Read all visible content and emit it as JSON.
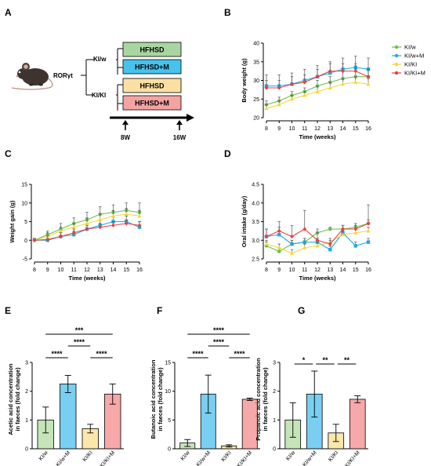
{
  "panels": {
    "a": "A",
    "b": "B",
    "c": "C",
    "d": "D",
    "e": "E",
    "f": "F",
    "g": "G"
  },
  "diagram": {
    "mouse_label": "RORγt",
    "branch_kiw": "KI/w",
    "branch_kiki": "KI/KI",
    "boxes": [
      {
        "label": "HFHSD",
        "color": "#a9d6a0"
      },
      {
        "label": "HFHSD+M",
        "color": "#45c3ec"
      },
      {
        "label": "HFHSD",
        "color": "#fbe0a2"
      },
      {
        "label": "HFHSD+M",
        "color": "#f4a3a3"
      }
    ],
    "time_start": "8W",
    "time_end": "16W"
  },
  "legend": [
    {
      "name": "KI/w",
      "color": "#6abf4b"
    },
    {
      "name": "KI/w+M",
      "color": "#1ea9e0"
    },
    {
      "name": "KI/KI",
      "color": "#f5d53a"
    },
    {
      "name": "KI/KI+M",
      "color": "#e8403f"
    }
  ],
  "chart_data": [
    {
      "id": "B",
      "type": "line",
      "xlabel": "Time (weeks)",
      "ylabel": "Body weight (g)",
      "x": [
        8,
        9,
        10,
        11,
        12,
        13,
        14,
        15,
        16
      ],
      "xlim": [
        8,
        16
      ],
      "ylim": [
        20,
        40
      ],
      "xticks": [
        "8",
        "9",
        "10",
        "11",
        "12",
        "13",
        "14",
        "15",
        "16"
      ],
      "yticks": [
        "20",
        "25",
        "30",
        "35",
        "40"
      ],
      "series": [
        {
          "name": "KI/w",
          "color": "#6abf4b",
          "values": [
            23.5,
            24.5,
            26,
            27,
            28.5,
            29.5,
            30.5,
            31,
            31
          ],
          "err": [
            1,
            1,
            1,
            1,
            1.5,
            1.5,
            2,
            2,
            2
          ]
        },
        {
          "name": "KI/w+M",
          "color": "#1ea9e0",
          "values": [
            28.5,
            28.5,
            29,
            30,
            31,
            32,
            33,
            33.5,
            33
          ],
          "err": [
            3,
            3,
            3,
            3,
            3,
            3,
            3,
            3,
            3
          ]
        },
        {
          "name": "KI/KI",
          "color": "#f5d53a",
          "values": [
            22.5,
            23.5,
            25,
            26,
            27,
            28,
            29,
            29.5,
            29
          ],
          "err": [
            1,
            1,
            1,
            1,
            1.5,
            1.5,
            1.5,
            1.5,
            1.5
          ]
        },
        {
          "name": "KI/KI+M",
          "color": "#e8403f",
          "values": [
            28,
            28,
            29,
            29.5,
            31,
            32.5,
            32.5,
            32.5,
            31
          ],
          "err": [
            2,
            2,
            2,
            2,
            2,
            2,
            2,
            2,
            2
          ]
        }
      ]
    },
    {
      "id": "C",
      "type": "line",
      "xlabel": "Time (weeks)",
      "ylabel": "Weight gain (g)",
      "x": [
        8,
        9,
        10,
        11,
        12,
        13,
        14,
        15,
        16
      ],
      "xlim": [
        8,
        16
      ],
      "ylim": [
        -5,
        15
      ],
      "xticks": [
        "8",
        "9",
        "10",
        "11",
        "12",
        "13",
        "14",
        "15",
        "16"
      ],
      "yticks": [
        "-5",
        "0",
        "5",
        "10",
        "15"
      ],
      "series": [
        {
          "name": "KI/w",
          "color": "#6abf4b",
          "values": [
            0,
            1.5,
            3,
            4.5,
            5.5,
            7,
            7.5,
            8,
            7.5
          ],
          "err": [
            0.5,
            1,
            1.5,
            1.5,
            2,
            2,
            2,
            2,
            2.5
          ]
        },
        {
          "name": "KI/w+M",
          "color": "#1ea9e0",
          "values": [
            0,
            0,
            1,
            1.5,
            3,
            4,
            5,
            5,
            3.5
          ],
          "err": [
            0.5,
            1,
            1,
            1,
            1.5,
            1.5,
            1.5,
            1.5,
            1.5
          ]
        },
        {
          "name": "KI/KI",
          "color": "#f5d53a",
          "values": [
            0,
            1,
            2.5,
            3.5,
            4.5,
            5.5,
            6.5,
            7,
            6.5
          ],
          "err": [
            0.5,
            1,
            1,
            1,
            1.5,
            1.5,
            1.5,
            1.5,
            1.5
          ]
        },
        {
          "name": "KI/KI+M",
          "color": "#e8403f",
          "values": [
            0,
            0.2,
            1,
            2,
            3,
            3.5,
            4,
            4.5,
            4
          ],
          "err": [
            0.5,
            1,
            1,
            1,
            1,
            1,
            1,
            1,
            1
          ]
        }
      ]
    },
    {
      "id": "D",
      "type": "line",
      "xlabel": "Time (weeks)",
      "ylabel": "Oral intake (g/day)",
      "x": [
        8,
        9,
        10,
        11,
        12,
        13,
        14,
        15,
        16
      ],
      "xlim": [
        8,
        16
      ],
      "ylim": [
        2.5,
        4.5
      ],
      "xticks": [
        "8",
        "9",
        "10",
        "11",
        "12",
        "13",
        "14",
        "15",
        "16"
      ],
      "yticks": [
        "2.5",
        "3.0",
        "3.5",
        "4.0",
        "4.5"
      ],
      "series": [
        {
          "name": "KI/w",
          "color": "#6abf4b",
          "values": [
            2.85,
            2.7,
            2.9,
            2.95,
            3.2,
            3.3,
            3.3,
            3.35,
            3.45
          ],
          "err": [
            0.1,
            0.1,
            0.1,
            0.1,
            0.1,
            0.05,
            0.1,
            0.1,
            0.1
          ]
        },
        {
          "name": "KI/w+M",
          "color": "#1ea9e0",
          "values": [
            3.1,
            3.15,
            2.9,
            2.95,
            2.95,
            2.75,
            3.2,
            2.85,
            2.95
          ],
          "err": [
            0.2,
            0.2,
            0.1,
            0.1,
            0.1,
            0.1,
            0.1,
            0.1,
            0.1
          ]
        },
        {
          "name": "KI/KI",
          "color": "#f5d53a",
          "values": [
            2.9,
            2.8,
            2.65,
            2.8,
            2.85,
            2.95,
            3.15,
            3.2,
            3.25
          ],
          "err": [
            0.1,
            0.1,
            0.1,
            0.1,
            0.1,
            0.1,
            0.1,
            0.1,
            0.1
          ]
        },
        {
          "name": "KI/KI+M",
          "color": "#e8403f",
          "values": [
            3.1,
            3.25,
            3.1,
            3.3,
            3.0,
            2.9,
            3.3,
            3.3,
            3.45
          ],
          "err": [
            0.2,
            0.25,
            0.3,
            0.5,
            0.2,
            0.1,
            0.1,
            0.1,
            0.5
          ]
        }
      ]
    },
    {
      "id": "E",
      "type": "bar",
      "ylabel": "Acetic acid concentration in faeces (fold change)",
      "categories": [
        "KI/w",
        "KI/w+M",
        "KI/KI",
        "KI/KI+M"
      ],
      "values": [
        1.0,
        2.25,
        0.7,
        1.9
      ],
      "err": [
        0.45,
        0.3,
        0.15,
        0.35
      ],
      "colors": [
        "#c5e5b8",
        "#79cff1",
        "#fbe7aa",
        "#f7a8a8"
      ],
      "ylim": [
        0,
        3
      ],
      "yticks": [
        "0",
        "1",
        "2",
        "3"
      ],
      "sig": [
        {
          "from": 0,
          "to": 1,
          "label": "****",
          "level": 0
        },
        {
          "from": 2,
          "to": 3,
          "label": "****",
          "level": 0
        },
        {
          "from": 1,
          "to": 2,
          "label": "****",
          "level": 1
        },
        {
          "from": 0,
          "to": 3,
          "label": "***",
          "level": 2
        }
      ]
    },
    {
      "id": "F",
      "type": "bar",
      "ylabel": "Butanoic acid concentration in faeces (fold change)",
      "categories": [
        "KI/w",
        "KI/w+M",
        "KI/KI",
        "KI/KI+M"
      ],
      "values": [
        1.0,
        9.5,
        0.5,
        8.6
      ],
      "err": [
        0.6,
        3.3,
        0.2,
        0.2
      ],
      "colors": [
        "#c5e5b8",
        "#79cff1",
        "#fbe7aa",
        "#f7a8a8"
      ],
      "ylim": [
        0,
        15
      ],
      "yticks": [
        "0",
        "5",
        "10",
        "15"
      ],
      "sig": [
        {
          "from": 0,
          "to": 1,
          "label": "****",
          "level": 0
        },
        {
          "from": 2,
          "to": 3,
          "label": "****",
          "level": 0
        },
        {
          "from": 1,
          "to": 2,
          "label": "****",
          "level": 1
        },
        {
          "from": 0,
          "to": 3,
          "label": "****",
          "level": 2
        }
      ]
    },
    {
      "id": "G",
      "type": "bar",
      "ylabel": "Propanoic acid concentration in faeces (fold change)",
      "categories": [
        "KI/w",
        "KI/w+M",
        "KI/KI",
        "KI/KI+M"
      ],
      "values": [
        1.0,
        1.9,
        0.55,
        1.72
      ],
      "err": [
        0.6,
        0.8,
        0.3,
        0.12
      ],
      "colors": [
        "#c5e5b8",
        "#79cff1",
        "#fbe7aa",
        "#f7a8a8"
      ],
      "ylim": [
        0,
        3
      ],
      "yticks": [
        "0",
        "1",
        "2",
        "3"
      ],
      "sig": [
        {
          "from": 0,
          "to": 1,
          "label": "*",
          "level": 0
        },
        {
          "from": 1,
          "to": 2,
          "label": "**",
          "level": 0
        },
        {
          "from": 2,
          "to": 3,
          "label": "**",
          "level": 0
        }
      ]
    }
  ]
}
